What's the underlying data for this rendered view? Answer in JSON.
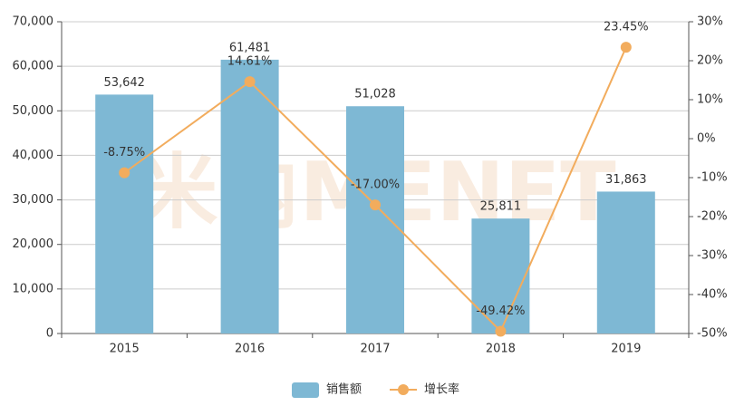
{
  "chart_data": {
    "type": "bar-line",
    "categories": [
      "2015",
      "2016",
      "2017",
      "2018",
      "2019"
    ],
    "series": [
      {
        "name": "销售额",
        "type": "bar",
        "color": "#7eb8d4",
        "values": [
          53642,
          61481,
          51028,
          25811,
          31863
        ],
        "value_labels": [
          "53,642",
          "61,481",
          "51,028",
          "25,811",
          "31,863"
        ]
      },
      {
        "name": "增长率",
        "type": "line",
        "axis": "y2",
        "color": "#f2ac5d",
        "values": [
          -8.75,
          14.61,
          -17.0,
          -49.42,
          23.45
        ],
        "value_labels": [
          "-8.75%",
          "14.61%",
          "-17.00%",
          "-49.42%",
          "23.45%"
        ]
      }
    ],
    "ylim": [
      0,
      70000
    ],
    "yticks": [
      0,
      {
        "value": 10000,
        "label": "10,000"
      },
      {
        "value": 20000,
        "label": "20,000"
      },
      {
        "value": 30000,
        "label": "30,000"
      },
      {
        "value": 40000,
        "label": "40,000"
      },
      {
        "value": 50000,
        "label": "50,000"
      },
      {
        "value": 60000,
        "label": "60,000"
      },
      {
        "value": 70000,
        "label": "70,000"
      }
    ],
    "y2lim": [
      -50,
      30
    ],
    "y2ticks": [
      {
        "value": -50,
        "label": "-50%"
      },
      {
        "value": -40,
        "label": "-40%"
      },
      {
        "value": -30,
        "label": "-30%"
      },
      {
        "value": -20,
        "label": "-20%"
      },
      {
        "value": -10,
        "label": "-10%"
      },
      {
        "value": 0,
        "label": "0%"
      },
      {
        "value": 10,
        "label": "10%"
      },
      {
        "value": 20,
        "label": "20%"
      },
      {
        "value": 30,
        "label": "30%"
      }
    ],
    "grid": true,
    "legend": "bottom",
    "watermark": "米内MENET"
  }
}
